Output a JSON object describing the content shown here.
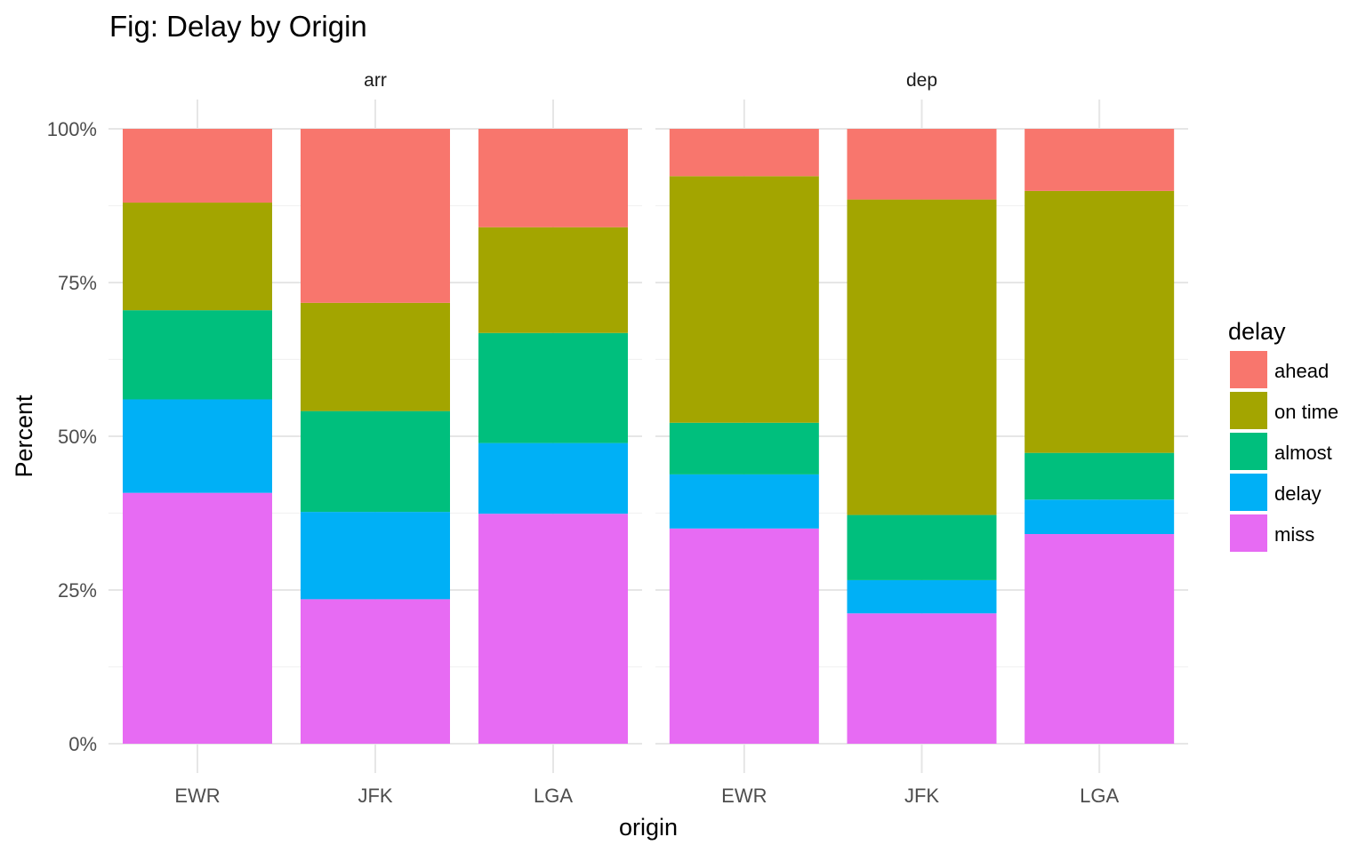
{
  "chart_data": {
    "type": "bar",
    "stacked": true,
    "percent": true,
    "title": "Fig: Delay by Origin",
    "xlabel": "origin",
    "ylabel": "Percent",
    "ylim": [
      0,
      1
    ],
    "yticks": [
      0,
      0.25,
      0.5,
      0.75,
      1
    ],
    "ytick_labels": [
      "0%",
      "25%",
      "50%",
      "75%",
      "100%"
    ],
    "grid": true,
    "legend": {
      "title": "delay",
      "position": "right",
      "entries": [
        {
          "label": "ahead",
          "color": "#F8766D"
        },
        {
          "label": "on time",
          "color": "#A3A500"
        },
        {
          "label": "almost",
          "color": "#00BF7D"
        },
        {
          "label": "delay",
          "color": "#00B0F6"
        },
        {
          "label": "miss",
          "color": "#E76BF3"
        }
      ]
    },
    "categories": [
      "EWR",
      "JFK",
      "LGA"
    ],
    "stack_order_bottom_to_top": [
      "miss",
      "delay",
      "almost",
      "on time",
      "ahead"
    ],
    "facets": [
      {
        "name": "arr",
        "bars": [
          {
            "category": "EWR",
            "values": {
              "miss": 0.408,
              "delay": 0.152,
              "almost": 0.145,
              "on time": 0.175,
              "ahead": 0.12
            }
          },
          {
            "category": "JFK",
            "values": {
              "miss": 0.235,
              "delay": 0.142,
              "almost": 0.164,
              "on time": 0.176,
              "ahead": 0.283
            }
          },
          {
            "category": "LGA",
            "values": {
              "miss": 0.374,
              "delay": 0.115,
              "almost": 0.179,
              "on time": 0.172,
              "ahead": 0.16
            }
          }
        ]
      },
      {
        "name": "dep",
        "bars": [
          {
            "category": "EWR",
            "values": {
              "miss": 0.35,
              "delay": 0.088,
              "almost": 0.084,
              "on time": 0.401,
              "ahead": 0.077
            }
          },
          {
            "category": "JFK",
            "values": {
              "miss": 0.212,
              "delay": 0.054,
              "almost": 0.106,
              "on time": 0.513,
              "ahead": 0.115
            }
          },
          {
            "category": "LGA",
            "values": {
              "miss": 0.341,
              "delay": 0.056,
              "almost": 0.076,
              "on time": 0.426,
              "ahead": 0.101
            }
          }
        ]
      }
    ]
  }
}
